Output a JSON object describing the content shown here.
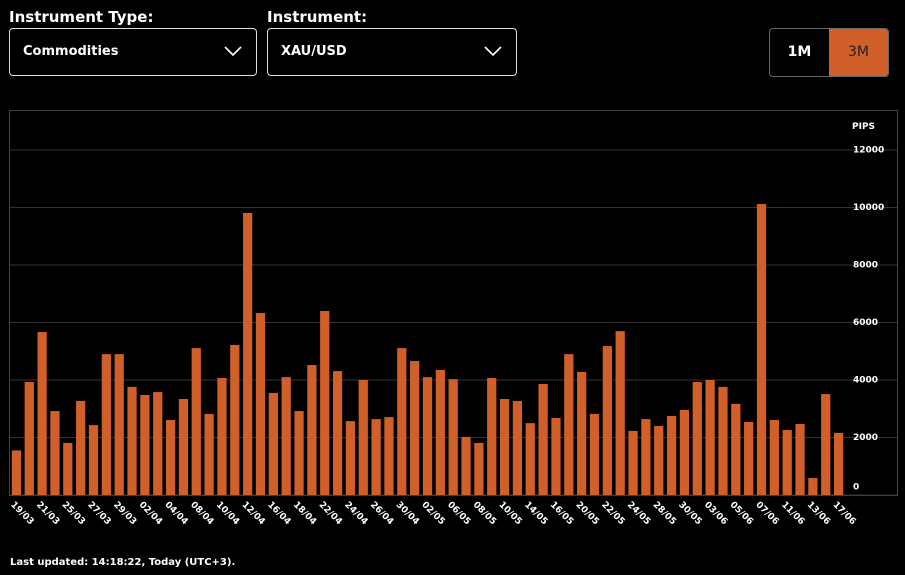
{
  "controls": {
    "instrument_type_label": "Instrument Type:",
    "instrument_type_value": "Commodities",
    "instrument_label": "Instrument:",
    "instrument_value": "XAU/USD",
    "ranges": [
      "1M",
      "3M"
    ]
  },
  "chart_data": {
    "type": "bar",
    "y_axis_label": "PIPS",
    "color": "#d05f2a",
    "grid": true,
    "categories": [
      "19/03",
      null,
      "21/03",
      null,
      "25/03",
      null,
      "27/03",
      null,
      "29/03",
      null,
      "02/04",
      null,
      "04/04",
      null,
      "08/04",
      null,
      "10/04",
      null,
      "12/04",
      null,
      "16/04",
      null,
      "18/04",
      null,
      "22/04",
      null,
      "24/04",
      null,
      "26/04",
      null,
      "30/04",
      null,
      "02/05",
      null,
      "06/05",
      null,
      "08/05",
      null,
      "10/05",
      null,
      "14/05",
      null,
      "16/05",
      null,
      "20/05",
      null,
      "22/05",
      null,
      "24/05",
      null,
      "28/05",
      null,
      "30/05",
      null,
      "03/06",
      null,
      "05/06",
      null,
      "07/06",
      null,
      "11/06",
      null,
      "13/06",
      null,
      "17/06"
    ],
    "values": [
      1550,
      3930,
      5670,
      2920,
      1810,
      3270,
      2430,
      4900,
      4900,
      3760,
      3480,
      3580,
      2610,
      3340,
      5110,
      2820,
      4070,
      5220,
      9810,
      6330,
      3550,
      4100,
      2920,
      4520,
      6400,
      4310,
      2570,
      4000,
      2640,
      2710,
      5110,
      4660,
      4100,
      4350,
      4030,
      2020,
      1810,
      4070,
      3340,
      3270,
      2500,
      3860,
      2680,
      4900,
      4280,
      2820,
      5180,
      5700,
      2230,
      2640,
      2400,
      2750,
      2960,
      3930,
      4000,
      3760,
      3170,
      2540,
      10120,
      2610,
      2260,
      2470,
      590,
      3510,
      2160
    ],
    "ylim": [
      0,
      12000
    ],
    "yticks": [
      0,
      2000,
      4000,
      6000,
      8000,
      10000,
      12000
    ]
  },
  "footer": "Last updated: 14:18:22, Today (UTC+3)."
}
